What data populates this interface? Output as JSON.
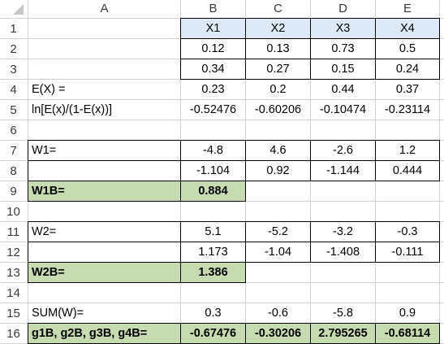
{
  "sheet": {
    "columns": [
      "A",
      "B",
      "C",
      "D",
      "E"
    ],
    "rows": [
      "1",
      "2",
      "3",
      "4",
      "5",
      "6",
      "7",
      "8",
      "9",
      "10",
      "11",
      "12",
      "13",
      "14",
      "15",
      "16"
    ],
    "colors": {
      "header_fill": "#dde9f7",
      "label_fill": "#c6dbb0",
      "gridline": "#d4d4d4",
      "border": "#000000"
    },
    "cells": {
      "A4": "E(X) =",
      "A5": "ln[E(x)/(1-E(x))]",
      "A7": "W1=",
      "A9": "W1B=",
      "A11": "W2=",
      "A13": "W2B=",
      "A15": "SUM(W)=",
      "A16": "g1B, g2B, g3B, g4B=",
      "B1": "X1",
      "C1": "X2",
      "D1": "X3",
      "E1": "X4",
      "B2": "0.12",
      "C2": "0.13",
      "D2": "0.73",
      "E2": "0.5",
      "B3": "0.34",
      "C3": "0.27",
      "D3": "0.15",
      "E3": "0.24",
      "B4": "0.23",
      "C4": "0.2",
      "D4": "0.44",
      "E4": "0.37",
      "B5": "-0.52476",
      "C5": "-0.60206",
      "D5": "-0.10474",
      "E5": "-0.23114",
      "B7": "-4.8",
      "C7": "4.6",
      "D7": "-2.6",
      "E7": "1.2",
      "B8": "-1.104",
      "C8": "0.92",
      "D8": "-1.144",
      "E8": "0.444",
      "B9": "0.884",
      "B11": "5.1",
      "C11": "-5.2",
      "D11": "-3.2",
      "E11": "-0.3",
      "B12": "1.173",
      "C12": "-1.04",
      "D12": "-1.408",
      "E12": "-0.111",
      "B13": "1.386",
      "B15": "0.3",
      "C15": "-0.6",
      "D15": "-5.8",
      "E15": "0.9",
      "B16": "-0.67476",
      "C16": "-0.30206",
      "D16": "2.795265",
      "E16": "-0.68114"
    }
  }
}
